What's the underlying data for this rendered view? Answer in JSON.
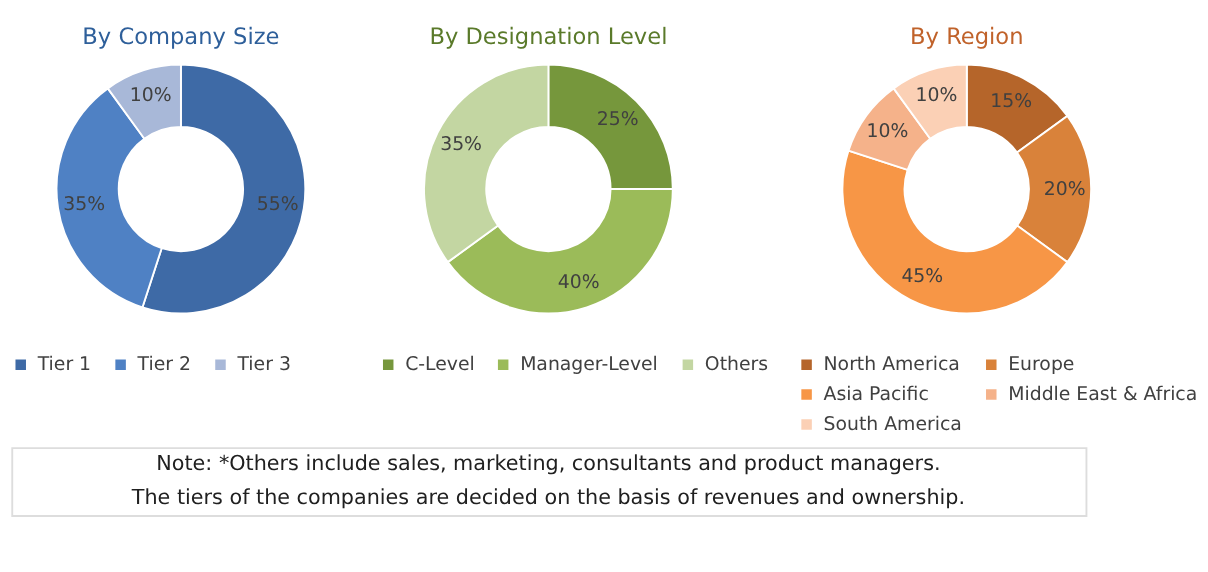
{
  "chart_data": [
    {
      "type": "donut",
      "title": "By Company Size",
      "categories": [
        "Tier 1",
        "Tier 2",
        "Tier 3"
      ],
      "values": [
        55,
        35,
        10
      ],
      "colors": [
        "#3e6aa6",
        "#4f81c4",
        "#a8b8d8"
      ],
      "value_labels": [
        "55%",
        "35%",
        "10%"
      ],
      "legend": "bottom",
      "annotations": [
        "Note: *Others include sales, marketing, consultants and product managers.",
        "The tiers of the companies are decided on the basis of revenues and ownership."
      ]
    },
    {
      "type": "donut",
      "title": "By Designation Level",
      "categories": [
        "C-Level",
        "Manager-Level",
        "Others"
      ],
      "values": [
        25,
        40,
        35
      ],
      "colors": [
        "#76973c",
        "#9bbb59",
        "#c3d6a2"
      ],
      "value_labels": [
        "25%",
        "40%",
        "35%"
      ],
      "legend": "bottom"
    },
    {
      "type": "donut",
      "title": "By Region",
      "categories": [
        "North America",
        "Europe",
        "Asia Pacific",
        "Middle East & Africa",
        "South America"
      ],
      "values": [
        15,
        20,
        45,
        10,
        10
      ],
      "colors": [
        "#b5652a",
        "#d9823a",
        "#f79646",
        "#f5b28a",
        "#fbd0b5"
      ],
      "value_labels": [
        "15%",
        "20%",
        "45%",
        "10%",
        "10%"
      ],
      "legend": "bottom"
    }
  ]
}
